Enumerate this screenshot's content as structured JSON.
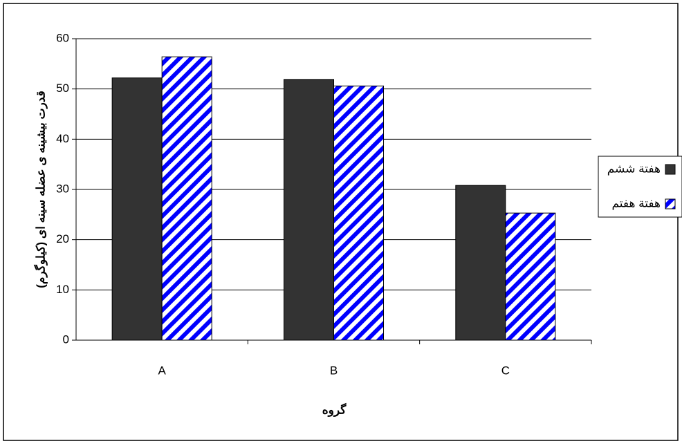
{
  "chart_data": {
    "type": "bar",
    "y_label": "قدرت بیشینه ی عضله سینه ای (کیلوگرم)",
    "x_label": "گروه",
    "categories": [
      "A",
      "B",
      "C"
    ],
    "series": [
      {
        "name": "هفتة ششم",
        "color": "#333333",
        "values": [
          52.2,
          51.9,
          30.8
        ]
      },
      {
        "name": "هفتة هفتم",
        "color": "#0000ff",
        "values": [
          56.4,
          50.6,
          25.3
        ]
      }
    ],
    "ylim": [
      0,
      60
    ],
    "yticks": [
      0,
      10,
      20,
      30,
      40,
      50,
      60
    ],
    "grid": true,
    "legend": "right"
  }
}
